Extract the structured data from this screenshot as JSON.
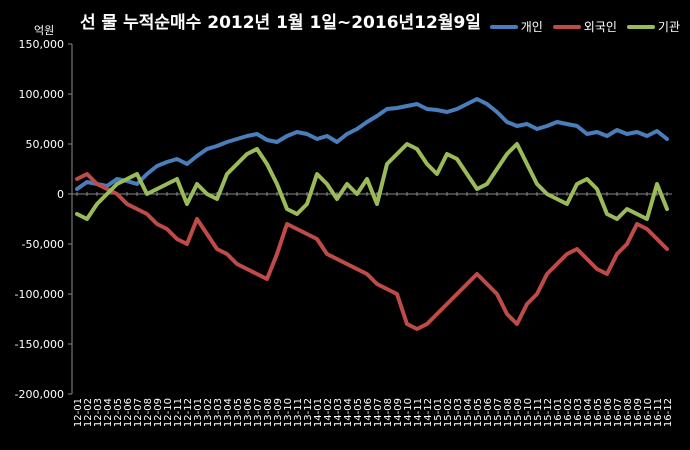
{
  "chart_data": {
    "type": "line",
    "title": "선 물 누적순매수 2012년 1월 1일~2016년12월9일",
    "unit_label": "억원",
    "ylim": [
      -200000,
      150000
    ],
    "yticks": [
      150000,
      100000,
      50000,
      0,
      -50000,
      -100000,
      -150000,
      -200000
    ],
    "ytick_labels": [
      "150,000",
      "100,000",
      "50,000",
      "0",
      "-50,000",
      "-100,000",
      "-150,000",
      "-200,000"
    ],
    "grid": false,
    "legend_position": "top-right",
    "x_labels": [
      "12-01",
      "12-02",
      "12-03",
      "12-04",
      "12-05",
      "12-06",
      "12-07",
      "12-08",
      "12-09",
      "12-10",
      "12-11",
      "12-12",
      "13-01",
      "13-02",
      "13-03",
      "13-04",
      "13-05",
      "13-06",
      "13-07",
      "13-08",
      "13-09",
      "13-10",
      "13-11",
      "13-12",
      "14-01",
      "14-02",
      "14-03",
      "14-04",
      "14-05",
      "14-06",
      "14-07",
      "14-08",
      "14-09",
      "14-10",
      "14-11",
      "14-12",
      "15-01",
      "15-02",
      "15-03",
      "15-04",
      "15-05",
      "15-06",
      "15-07",
      "15-08",
      "15-09",
      "15-10",
      "15-11",
      "15-12",
      "16-01",
      "16-02",
      "16-03",
      "16-04",
      "16-05",
      "16-06",
      "16-07",
      "16-08",
      "16-09",
      "16-10",
      "16-11",
      "16-12"
    ],
    "series": [
      {
        "name": "개인",
        "color": "#4a7ebb",
        "values": [
          5000,
          12000,
          10000,
          8000,
          15000,
          13000,
          10000,
          20000,
          28000,
          32000,
          35000,
          30000,
          38000,
          45000,
          48000,
          52000,
          55000,
          58000,
          60000,
          54000,
          52000,
          58000,
          62000,
          60000,
          55000,
          58000,
          52000,
          60000,
          65000,
          72000,
          78000,
          85000,
          86000,
          88000,
          90000,
          85000,
          84000,
          82000,
          85000,
          90000,
          95000,
          90000,
          82000,
          72000,
          68000,
          70000,
          65000,
          68000,
          72000,
          70000,
          68000,
          60000,
          62000,
          58000,
          64000,
          60000,
          62000,
          58000,
          63000,
          55000
        ]
      },
      {
        "name": "외국인",
        "color": "#be4b48",
        "values": [
          15000,
          20000,
          10000,
          5000,
          0,
          -10000,
          -15000,
          -20000,
          -30000,
          -35000,
          -45000,
          -50000,
          -25000,
          -40000,
          -55000,
          -60000,
          -70000,
          -75000,
          -80000,
          -85000,
          -60000,
          -30000,
          -35000,
          -40000,
          -45000,
          -60000,
          -65000,
          -70000,
          -75000,
          -80000,
          -90000,
          -95000,
          -100000,
          -130000,
          -135000,
          -130000,
          -120000,
          -110000,
          -100000,
          -90000,
          -80000,
          -90000,
          -100000,
          -120000,
          -130000,
          -110000,
          -100000,
          -80000,
          -70000,
          -60000,
          -55000,
          -65000,
          -75000,
          -80000,
          -60000,
          -50000,
          -30000,
          -35000,
          -45000,
          -55000
        ]
      },
      {
        "name": "기관",
        "color": "#9bbb59",
        "values": [
          -20000,
          -25000,
          -10000,
          0,
          10000,
          15000,
          20000,
          0,
          5000,
          10000,
          15000,
          -10000,
          10000,
          0,
          -5000,
          20000,
          30000,
          40000,
          45000,
          30000,
          10000,
          -15000,
          -20000,
          -10000,
          20000,
          10000,
          -5000,
          10000,
          0,
          15000,
          -10000,
          30000,
          40000,
          50000,
          45000,
          30000,
          20000,
          40000,
          35000,
          20000,
          5000,
          10000,
          25000,
          40000,
          50000,
          30000,
          10000,
          0,
          -5000,
          -10000,
          10000,
          15000,
          5000,
          -20000,
          -25000,
          -15000,
          -20000,
          -25000,
          10000,
          -15000
        ]
      }
    ]
  }
}
